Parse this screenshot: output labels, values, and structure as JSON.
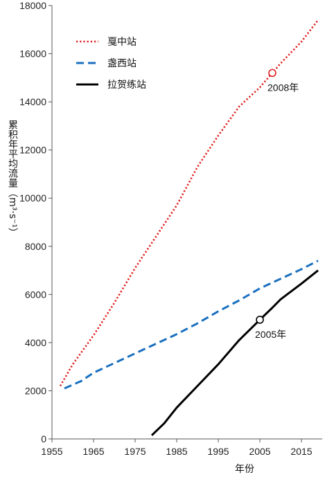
{
  "chart_data": {
    "type": "line",
    "title": "",
    "xlabel": "年份",
    "ylabel": "累积年平均流量（m³·s⁻¹）",
    "xlim": [
      1955,
      2020
    ],
    "ylim": [
      0,
      18000
    ],
    "xticks": [
      1955,
      1965,
      1975,
      1985,
      1995,
      2005,
      2015
    ],
    "yticks": [
      0,
      2000,
      4000,
      6000,
      8000,
      10000,
      12000,
      14000,
      16000,
      18000
    ],
    "grid": false,
    "legend_position": "top-left",
    "series": [
      {
        "name": "戛中站",
        "color": "#e02020",
        "style": "dotted",
        "points": [
          [
            1957,
            2200
          ],
          [
            1960,
            3100
          ],
          [
            1965,
            4300
          ],
          [
            1970,
            5650
          ],
          [
            1975,
            7100
          ],
          [
            1980,
            8400
          ],
          [
            1985,
            9700
          ],
          [
            1990,
            11300
          ],
          [
            1995,
            12600
          ],
          [
            2000,
            13800
          ],
          [
            2005,
            14600
          ],
          [
            2008,
            15200
          ],
          [
            2010,
            15600
          ],
          [
            2015,
            16500
          ],
          [
            2019,
            17400
          ]
        ]
      },
      {
        "name": "盏西站",
        "color": "#1a6fbf",
        "style": "dashed",
        "points": [
          [
            1958,
            2100
          ],
          [
            1962,
            2400
          ],
          [
            1965,
            2750
          ],
          [
            1970,
            3150
          ],
          [
            1975,
            3550
          ],
          [
            1980,
            3950
          ],
          [
            1985,
            4350
          ],
          [
            1990,
            4800
          ],
          [
            1995,
            5300
          ],
          [
            2000,
            5750
          ],
          [
            2005,
            6250
          ],
          [
            2010,
            6650
          ],
          [
            2015,
            7050
          ],
          [
            2019,
            7400
          ]
        ]
      },
      {
        "name": "拉贺练站",
        "color": "#000000",
        "style": "solid",
        "points": [
          [
            1979,
            150
          ],
          [
            1982,
            650
          ],
          [
            1985,
            1300
          ],
          [
            1990,
            2200
          ],
          [
            1995,
            3100
          ],
          [
            2000,
            4100
          ],
          [
            2005,
            4950
          ],
          [
            2008,
            5450
          ],
          [
            2010,
            5800
          ],
          [
            2015,
            6450
          ],
          [
            2019,
            7000
          ]
        ]
      }
    ],
    "annotations": [
      {
        "text": "2008年",
        "x": 2008,
        "y": 15200,
        "series": 0,
        "marker_color": "#e02020"
      },
      {
        "text": "2005年",
        "x": 2005,
        "y": 4950,
        "series": 2,
        "marker_color": "#000000"
      }
    ]
  }
}
